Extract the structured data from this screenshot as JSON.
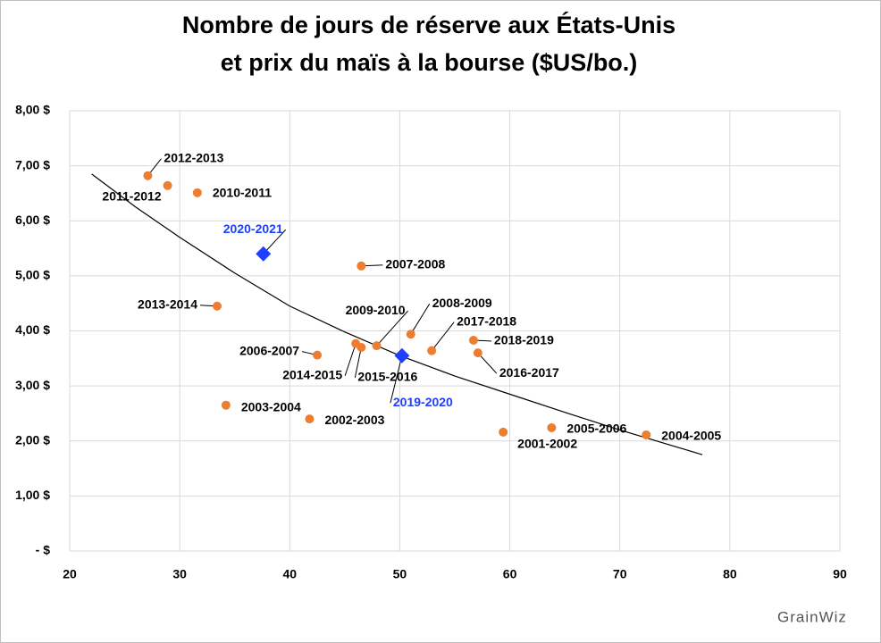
{
  "chart_data": {
    "type": "scatter",
    "title": [
      "Nombre de jours de réserve aux États-Unis",
      "et prix du maïs à la bourse ($US/bo.)"
    ],
    "xlim": [
      20,
      90
    ],
    "xticks": [
      20,
      30,
      40,
      50,
      60,
      70,
      80,
      90
    ],
    "ylim": [
      0,
      8
    ],
    "yticks": [
      {
        "value": 0,
        "label": "-   $"
      },
      {
        "value": 1,
        "label": "1,00 $"
      },
      {
        "value": 2,
        "label": "2,00 $"
      },
      {
        "value": 3,
        "label": "3,00 $"
      },
      {
        "value": 4,
        "label": "4,00 $"
      },
      {
        "value": 5,
        "label": "5,00 $"
      },
      {
        "value": 6,
        "label": "6,00 $"
      },
      {
        "value": 7,
        "label": "7,00 $"
      },
      {
        "value": 8,
        "label": "8,00 $"
      }
    ],
    "grid": true,
    "series": [
      {
        "color": "#ed7d31",
        "marker": "circle",
        "x": [
          27.1,
          28.9,
          31.6,
          33.4,
          34.2,
          46.5,
          42.5,
          41.8,
          46.0,
          46.5,
          47.9,
          51.0,
          52.9,
          56.7,
          57.1,
          59.4,
          63.8,
          72.4
        ],
        "values": [
          6.82,
          6.64,
          6.51,
          4.45,
          2.65,
          5.18,
          3.56,
          2.4,
          3.77,
          3.7,
          3.73,
          3.94,
          3.64,
          3.83,
          3.6,
          2.16,
          2.24,
          2.11
        ],
        "point_labels": [
          "2012-2013",
          "2011-2012",
          "2010-2011",
          "2013-2014",
          "2003-2004",
          "2007-2008",
          "2006-2007",
          "2002-2003",
          "2014-2015",
          "2015-2016",
          "2009-2010",
          "2008-2009",
          "2017-2018",
          "2018-2019",
          "2016-2017",
          "2001-2002",
          "2005-2006",
          "2004-2005"
        ]
      },
      {
        "color": "#1f3fff",
        "marker": "diamond",
        "x": [
          37.6,
          50.2
        ],
        "values": [
          5.4,
          3.55
        ],
        "point_labels": [
          "2020-2021",
          "2019-2020"
        ]
      }
    ],
    "trendline": {
      "color": "#000000",
      "x": [
        22,
        26,
        30,
        35,
        40,
        45,
        50,
        55,
        60,
        65,
        70,
        77.5
      ],
      "values": [
        6.85,
        6.25,
        5.7,
        5.05,
        4.45,
        3.98,
        3.55,
        3.18,
        2.85,
        2.52,
        2.2,
        1.75
      ]
    },
    "logo": "GrainWiz"
  }
}
